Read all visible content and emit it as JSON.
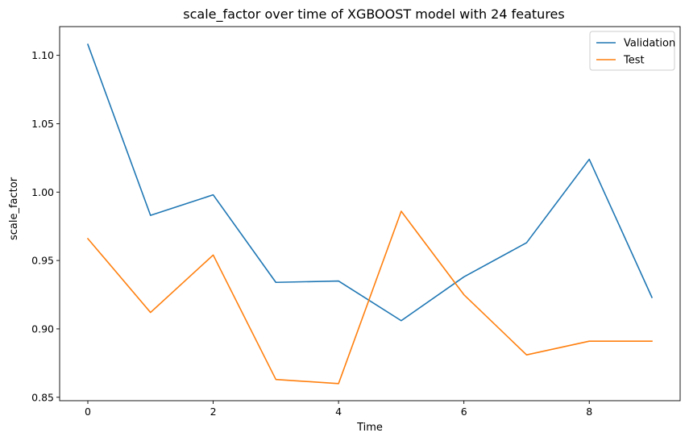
{
  "chart_data": {
    "type": "line",
    "title": "scale_factor over time of XGBOOST model with 24 features",
    "xlabel": "Time",
    "ylabel": "scale_factor",
    "x": [
      0,
      1,
      2,
      3,
      4,
      5,
      6,
      7,
      8,
      9
    ],
    "xlim": [
      -0.45,
      9.45
    ],
    "ylim": [
      0.8475,
      1.121
    ],
    "xticks": [
      0,
      2,
      4,
      6,
      8
    ],
    "yticks": [
      0.85,
      0.9,
      0.95,
      1.0,
      1.05,
      1.1
    ],
    "ytick_labels": [
      "0.85",
      "0.90",
      "0.95",
      "1.00",
      "1.05",
      "1.10"
    ],
    "grid": false,
    "legend_position": "top-right",
    "series": [
      {
        "name": "Validation",
        "color": "#1f77b4",
        "values": [
          1.108,
          0.983,
          0.998,
          0.934,
          0.935,
          0.906,
          0.938,
          0.963,
          1.024,
          0.923
        ]
      },
      {
        "name": "Test",
        "color": "#ff7f0e",
        "values": [
          0.966,
          0.912,
          0.954,
          0.863,
          0.86,
          0.986,
          0.925,
          0.881,
          0.891,
          0.891
        ]
      }
    ]
  }
}
